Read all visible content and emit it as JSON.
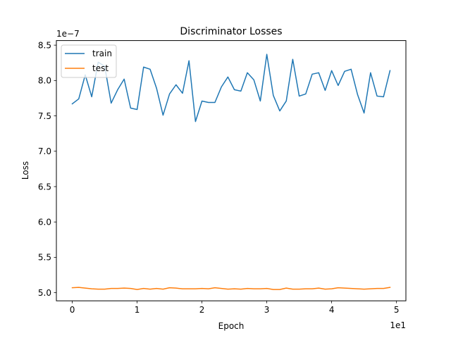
{
  "chart_data": {
    "type": "line",
    "title": "Discriminator Losses",
    "xlabel": "Epoch",
    "ylabel": "Loss",
    "x_offset_label": "1e1",
    "y_offset_label": "1e−7",
    "xlim": [
      -2.45,
      51.45
    ],
    "ylim": [
      4.885,
      8.565
    ],
    "x_ticks": [
      0,
      10,
      20,
      30,
      40,
      50
    ],
    "x_tick_labels": [
      "0",
      "1",
      "2",
      "3",
      "4",
      "5"
    ],
    "y_ticks": [
      5.0,
      5.5,
      6.0,
      6.5,
      7.0,
      7.5,
      8.0,
      8.5
    ],
    "y_tick_labels": [
      "5.0",
      "5.5",
      "6.0",
      "6.5",
      "7.0",
      "7.5",
      "8.0",
      "8.5"
    ],
    "legend_position": "top-left",
    "grid": false,
    "x": [
      0,
      1,
      2,
      3,
      4,
      5,
      6,
      7,
      8,
      9,
      10,
      11,
      12,
      13,
      14,
      15,
      16,
      17,
      18,
      19,
      20,
      21,
      22,
      23,
      24,
      25,
      26,
      27,
      28,
      29,
      30,
      31,
      32,
      33,
      34,
      35,
      36,
      37,
      38,
      39,
      40,
      41,
      42,
      43,
      44,
      45,
      46,
      47,
      48,
      49
    ],
    "series": [
      {
        "name": "train",
        "color": "#1f77b4",
        "values": [
          7.67,
          7.74,
          8.08,
          7.77,
          8.26,
          8.2,
          7.68,
          7.87,
          8.02,
          7.61,
          7.59,
          8.19,
          8.16,
          7.89,
          7.51,
          7.81,
          7.94,
          7.82,
          8.28,
          7.42,
          7.71,
          7.69,
          7.69,
          7.91,
          8.05,
          7.87,
          7.85,
          8.11,
          8.01,
          7.71,
          8.37,
          7.79,
          7.57,
          7.71,
          8.3,
          7.78,
          7.81,
          8.09,
          8.11,
          7.86,
          8.14,
          7.93,
          8.13,
          8.16,
          7.8,
          7.54,
          8.11,
          7.78,
          7.77,
          8.14
        ]
      },
      {
        "name": "test",
        "color": "#ff7f0e",
        "values": [
          5.07,
          5.075,
          5.065,
          5.055,
          5.05,
          5.05,
          5.06,
          5.06,
          5.065,
          5.06,
          5.045,
          5.06,
          5.05,
          5.06,
          5.05,
          5.07,
          5.065,
          5.055,
          5.055,
          5.055,
          5.06,
          5.055,
          5.07,
          5.06,
          5.05,
          5.055,
          5.05,
          5.06,
          5.055,
          5.055,
          5.06,
          5.045,
          5.045,
          5.065,
          5.05,
          5.05,
          5.055,
          5.055,
          5.065,
          5.05,
          5.055,
          5.07,
          5.065,
          5.06,
          5.055,
          5.05,
          5.055,
          5.06,
          5.06,
          5.075
        ]
      }
    ]
  }
}
